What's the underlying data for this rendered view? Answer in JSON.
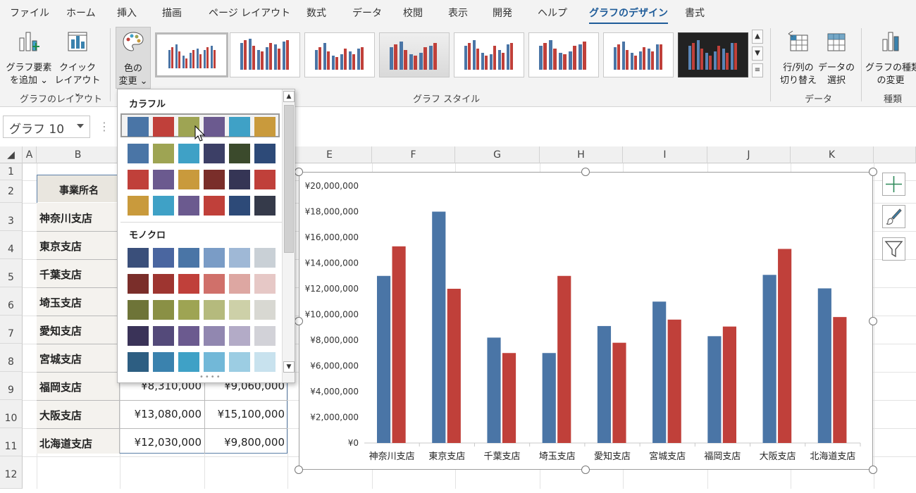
{
  "ribbon_tabs": [
    "ファイル",
    "ホーム",
    "挿入",
    "描画",
    "ページ レイアウト",
    "数式",
    "データ",
    "校閲",
    "表示",
    "開発",
    "ヘルプ",
    "グラフのデザイン",
    "書式"
  ],
  "active_tab": "グラフのデザイン",
  "ribbon": {
    "add_element": [
      "グラフ要素",
      "を追加 ⌄"
    ],
    "quick_layout": [
      "クイック",
      "レイアウト ⌄"
    ],
    "change_colors": [
      "色の",
      "変更 ⌄"
    ],
    "layout_group": "グラフのレイアウト",
    "styles_group": "グラフ スタイル",
    "switch_row_col": [
      "行/列の",
      "切り替え"
    ],
    "select_data": [
      "データの",
      "選択"
    ],
    "data_group": "データ",
    "change_type": [
      "グラフの種類",
      "の変更"
    ],
    "type_group": "種類"
  },
  "name_box": "グラフ 10",
  "columns": [
    "A",
    "B",
    "E",
    "F",
    "G",
    "H",
    "I",
    "J",
    "K"
  ],
  "rows": [
    "1",
    "2",
    "3",
    "4",
    "5",
    "6",
    "7",
    "8",
    "9",
    "10",
    "11",
    "12"
  ],
  "table": {
    "header": "事業所名",
    "branches": [
      "神奈川支店",
      "東京支店",
      "千葉支店",
      "埼玉支店",
      "愛知支店",
      "宮城支店",
      "福岡支店",
      "大阪支店",
      "北海道支店"
    ],
    "visible_values": [
      [
        "¥8,310,000",
        "¥9,060,000"
      ],
      [
        "¥13,080,000",
        "¥15,100,000"
      ],
      [
        "¥12,030,000",
        "¥9,800,000"
      ]
    ]
  },
  "color_menu": {
    "colorful_label": "カラフル",
    "mono_label": "モノクロ",
    "colorful_rows": [
      [
        "#4a75a6",
        "#c0403a",
        "#9ea453",
        "#6b5a8f",
        "#3fa1c6",
        "#c99a3c"
      ],
      [
        "#4a75a6",
        "#9ea453",
        "#3fa1c6",
        "#3c3f66",
        "#3b4a2c",
        "#2d4a78"
      ],
      [
        "#c0403a",
        "#6b5a8f",
        "#c99a3c",
        "#7a2e2a",
        "#353555",
        "#c0403a"
      ],
      [
        "#c99a3c",
        "#3fa1c6",
        "#6b5a8f",
        "#c0403a",
        "#2d4a78",
        "#353a4a"
      ]
    ],
    "mono_rows": [
      [
        "#3a4f7a",
        "#4a66a0",
        "#4a75a6",
        "#7a9cc6",
        "#9fb8d6",
        "#c9d0d6"
      ],
      [
        "#7a2e2a",
        "#9e3530",
        "#c0403a",
        "#d0706a",
        "#dda7a2",
        "#e6c8c6"
      ],
      [
        "#6e7438",
        "#8a9045",
        "#9ea453",
        "#b5ba7d",
        "#cdd0a8",
        "#d8d8d2"
      ],
      [
        "#3a3358",
        "#544a7a",
        "#6b5a8f",
        "#9187b0",
        "#b3abc7",
        "#d2d2d8"
      ],
      [
        "#2d5e82",
        "#3a82ae",
        "#3fa1c6",
        "#72b8d8",
        "#9ccde3",
        "#c8e2ee"
      ]
    ]
  },
  "accent": "#1f5c99",
  "chart_data": {
    "type": "bar",
    "categories": [
      "神奈川支店",
      "東京支店",
      "千葉支店",
      "埼玉支店",
      "愛知支店",
      "宮城支店",
      "福岡支店",
      "大阪支店",
      "北海道支店"
    ],
    "series": [
      {
        "color": "#4a75a6",
        "values": [
          13000000,
          18000000,
          8200000,
          7000000,
          9100000,
          11000000,
          8310000,
          13080000,
          12030000
        ]
      },
      {
        "color": "#c0403a",
        "values": [
          15300000,
          12000000,
          7000000,
          13000000,
          7800000,
          9600000,
          9060000,
          15100000,
          9800000
        ]
      }
    ],
    "ylim": [
      0,
      20000000
    ],
    "y_ticks": [
      "¥0",
      "¥2,000,000",
      "¥4,000,000",
      "¥6,000,000",
      "¥8,000,000",
      "¥10,000,000",
      "¥12,000,000",
      "¥14,000,000",
      "¥16,000,000",
      "¥18,000,000",
      "¥20,000,000"
    ],
    "legend": "none",
    "grid": false
  }
}
